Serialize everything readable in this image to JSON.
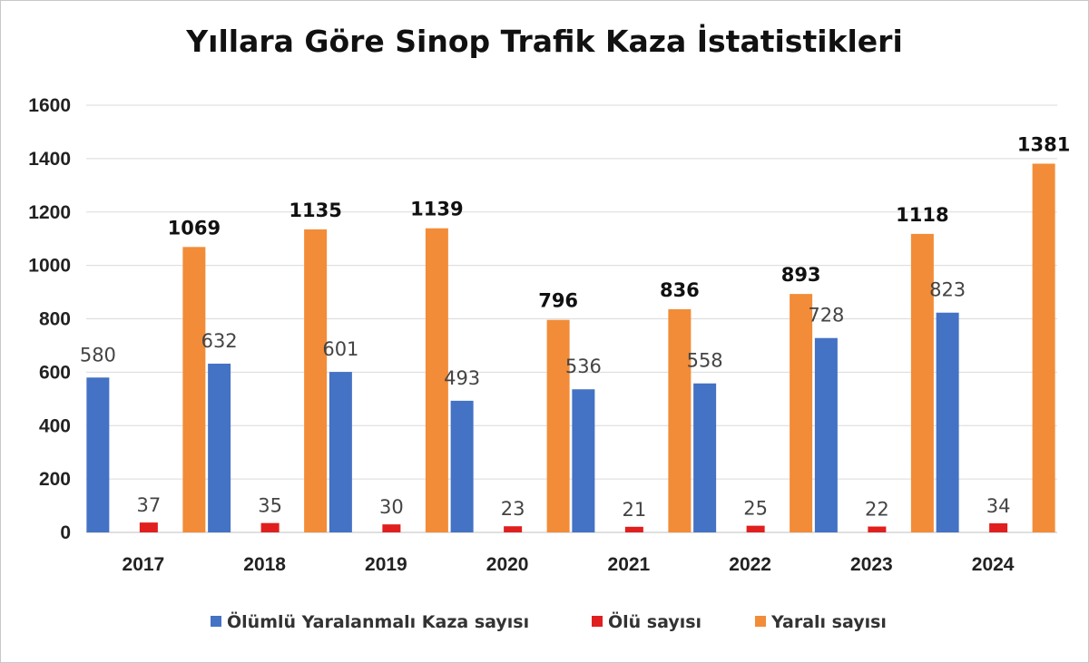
{
  "chart_data": {
    "type": "bar",
    "title": "Yıllara Göre Sinop Trafik Kaza İstatistikleri",
    "categories": [
      "2017",
      "2018",
      "2019",
      "2020",
      "2021",
      "2022",
      "2023",
      "2024"
    ],
    "series": [
      {
        "name": "Ölümlü Yaralanmalı Kaza sayısı",
        "color": "#4472C4",
        "values": [
          580,
          632,
          601,
          493,
          536,
          558,
          728,
          823
        ]
      },
      {
        "name": "Ölü sayısı",
        "color": "#E01F1F",
        "values": [
          37,
          35,
          30,
          23,
          21,
          25,
          22,
          34
        ]
      },
      {
        "name": "Yaralı sayısı",
        "color": "#F28C38",
        "values": [
          1069,
          1135,
          1139,
          796,
          836,
          893,
          1118,
          1381
        ]
      }
    ],
    "ylim": [
      0,
      1600
    ],
    "yticks": [
      0,
      200,
      400,
      600,
      800,
      1000,
      1200,
      1400,
      1600
    ],
    "grid": true,
    "legend": "bottom"
  }
}
